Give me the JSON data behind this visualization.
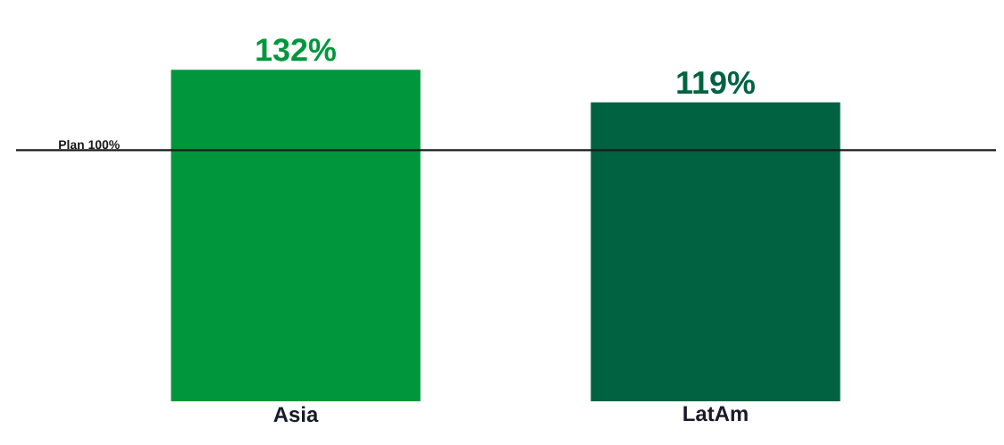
{
  "chart_data": {
    "type": "bar",
    "categories": [
      "Asia",
      "LatAm"
    ],
    "values": [
      132,
      119
    ],
    "colors": [
      "#00963c",
      "#006241"
    ],
    "value_labels": [
      "132%",
      "119%"
    ],
    "ref_lines": [
      {
        "axis": "y",
        "value": 100,
        "label": "Plan 100%",
        "color": "#1a1a1a"
      }
    ]
  }
}
